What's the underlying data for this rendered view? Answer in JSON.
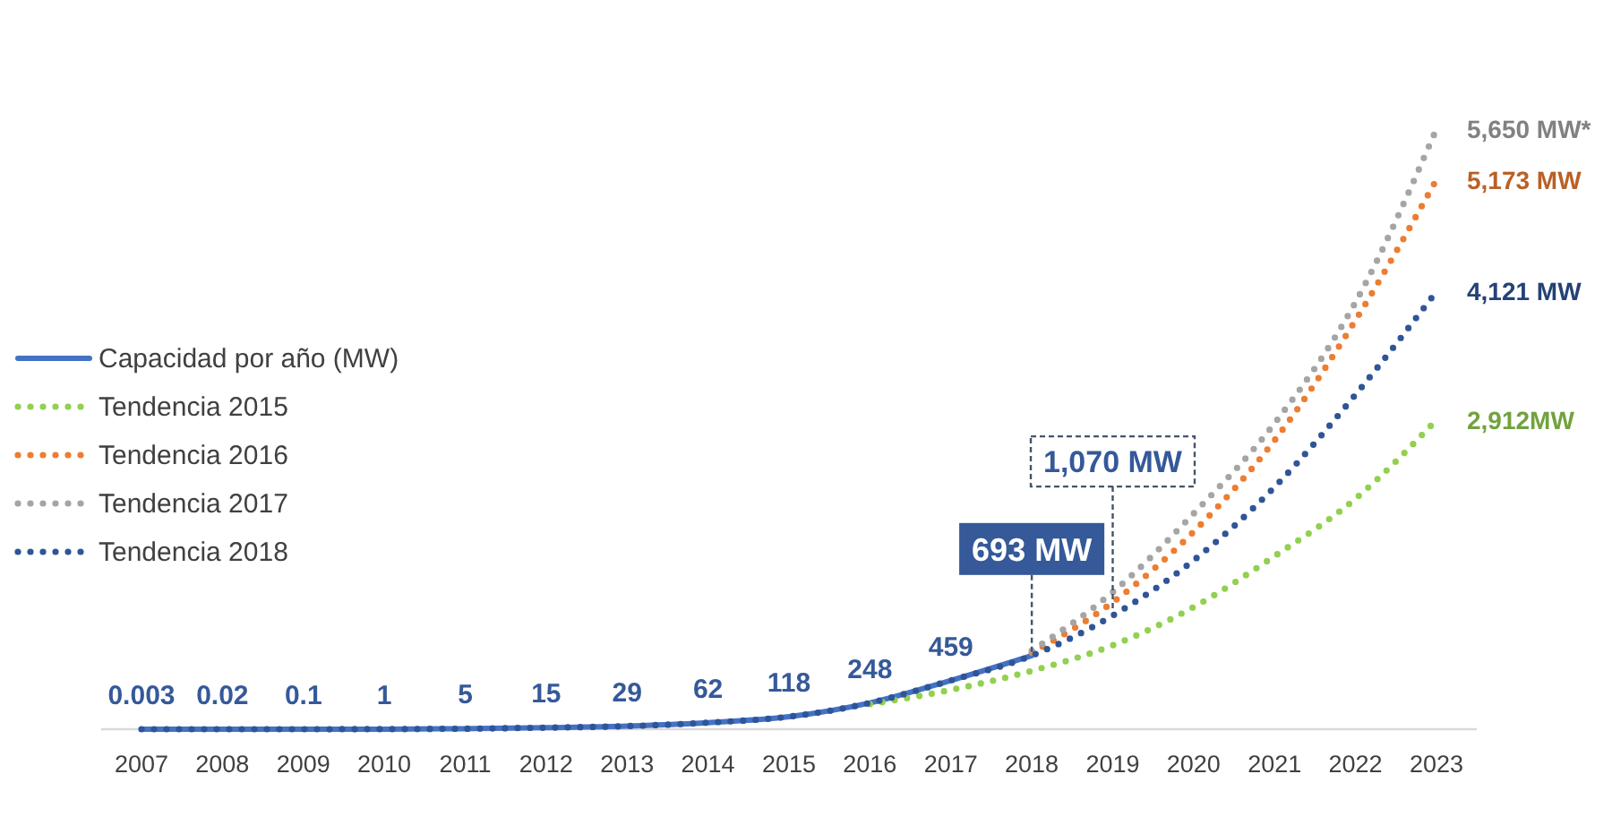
{
  "chart_data": {
    "type": "line",
    "categories": [
      "2007",
      "2008",
      "2009",
      "2010",
      "2011",
      "2012",
      "2013",
      "2014",
      "2015",
      "2016",
      "2017",
      "2018",
      "2019",
      "2020",
      "2021",
      "2022",
      "2023"
    ],
    "series": [
      {
        "name": "Capacidad por año (MW)",
        "color": "#4472c4",
        "line_style": "solid",
        "values": [
          0.003,
          0.02,
          0.1,
          1,
          5,
          15,
          29,
          62,
          118,
          248,
          459,
          693,
          null,
          null,
          null,
          null,
          null
        ],
        "value_labels": [
          "0.003",
          "0.02",
          "0.1",
          "1",
          "5",
          "15",
          "29",
          "62",
          "118",
          "248",
          "459",
          "693 MW",
          null,
          null,
          null,
          null,
          null
        ]
      },
      {
        "name": "Tendencia 2015",
        "color": "#92d050",
        "line_style": "dotted",
        "values": [
          null,
          null,
          null,
          null,
          null,
          null,
          null,
          null,
          null,
          236,
          370,
          550,
          790,
          1150,
          1630,
          2170,
          2912
        ],
        "value_labels": [
          null,
          null,
          null,
          null,
          null,
          null,
          null,
          null,
          null,
          null,
          null,
          null,
          null,
          null,
          null,
          null,
          "2,912MW"
        ]
      },
      {
        "name": "Tendencia 2016",
        "color": "#ed7d31",
        "line_style": "dotted",
        "values": [
          null,
          null,
          null,
          null,
          null,
          null,
          null,
          null,
          null,
          null,
          null,
          720,
          1195,
          1860,
          2720,
          3850,
          5173
        ],
        "value_labels": [
          null,
          null,
          null,
          null,
          null,
          null,
          null,
          null,
          null,
          null,
          null,
          null,
          null,
          null,
          null,
          null,
          "5,173 MW"
        ]
      },
      {
        "name": "Tendencia 2017",
        "color": "#a5a5a5",
        "line_style": "dotted",
        "values": [
          null,
          null,
          null,
          null,
          null,
          null,
          null,
          null,
          null,
          null,
          null,
          740,
          1290,
          2030,
          2880,
          4020,
          5650
        ],
        "value_labels": [
          null,
          null,
          null,
          null,
          null,
          null,
          null,
          null,
          null,
          null,
          null,
          null,
          null,
          null,
          null,
          null,
          "5,650 MW*"
        ]
      },
      {
        "name": "Tendencia 2018",
        "color": "#2f5597",
        "line_style": "dotted",
        "values": [
          0,
          0,
          0,
          1,
          5,
          15,
          29,
          62,
          118,
          248,
          459,
          693,
          1070,
          1590,
          2280,
          3150,
          4121
        ],
        "value_labels": [
          null,
          null,
          null,
          null,
          null,
          null,
          null,
          null,
          null,
          null,
          null,
          null,
          null,
          null,
          null,
          null,
          "4,121 MW"
        ]
      }
    ],
    "legend": "left",
    "annotations": [
      {
        "text": "1,070 MW",
        "x": "2019",
        "y": 1070
      }
    ]
  }
}
